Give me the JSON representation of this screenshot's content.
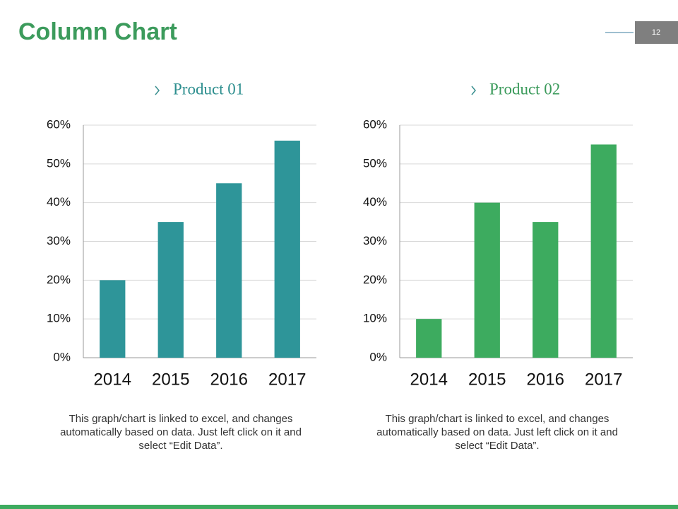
{
  "title": "Column Chart",
  "page_number": "12",
  "chart_data": [
    {
      "type": "bar",
      "title": "Product 01",
      "categories": [
        "2014",
        "2015",
        "2016",
        "2017"
      ],
      "values": [
        20,
        35,
        45,
        56
      ],
      "color": "#2e9599",
      "ylim": [
        0,
        60
      ],
      "yticks": [
        {
          "value": 0,
          "label": "0%"
        },
        {
          "value": 10,
          "label": "10%"
        },
        {
          "value": 20,
          "label": "20%"
        },
        {
          "value": 30,
          "label": "30%"
        },
        {
          "value": 40,
          "label": "40%"
        },
        {
          "value": 50,
          "label": "50%"
        },
        {
          "value": 60,
          "label": "60%"
        }
      ],
      "grid": true,
      "caption": "This graph/chart is linked to excel, and changes automatically based on data. Just left click on it and select “Edit Data”."
    },
    {
      "type": "bar",
      "title": "Product 02",
      "categories": [
        "2014",
        "2015",
        "2016",
        "2017"
      ],
      "values": [
        10,
        40,
        35,
        55
      ],
      "color": "#3dab5f",
      "ylim": [
        0,
        60
      ],
      "yticks": [
        {
          "value": 0,
          "label": "0%"
        },
        {
          "value": 10,
          "label": "10%"
        },
        {
          "value": 20,
          "label": "20%"
        },
        {
          "value": 30,
          "label": "30%"
        },
        {
          "value": 40,
          "label": "40%"
        },
        {
          "value": 50,
          "label": "50%"
        },
        {
          "value": 60,
          "label": "60%"
        }
      ],
      "grid": true,
      "caption": "This graph/chart is linked to excel, and changes automatically based on data. Just left click on it and select “Edit Data”."
    }
  ]
}
